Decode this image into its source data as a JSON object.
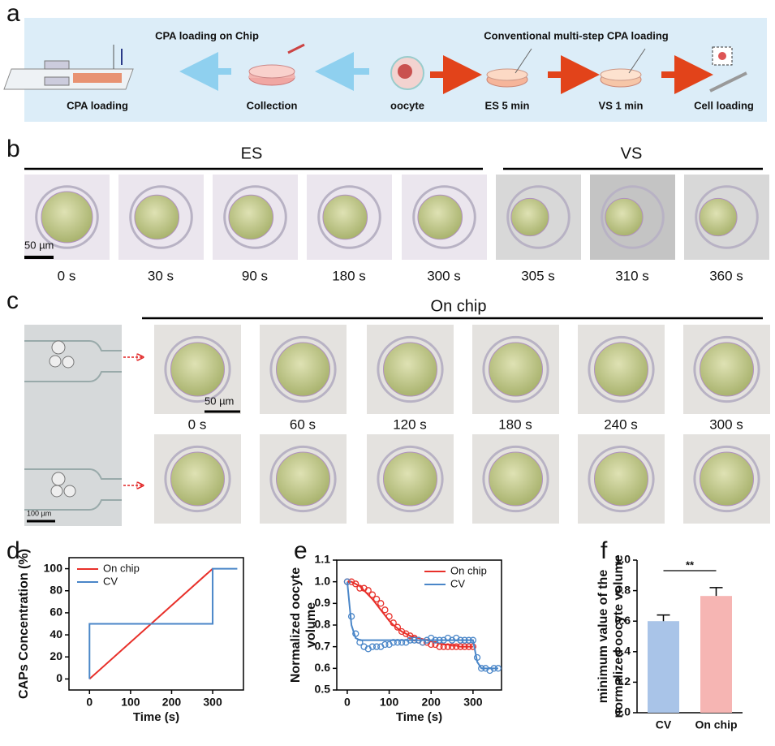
{
  "panel_labels": [
    "a",
    "b",
    "c",
    "d",
    "e",
    "f"
  ],
  "panel_a": {
    "left_title": "CPA loading on Chip",
    "right_title": "Conventional multi-step CPA loading",
    "steps": [
      "CPA loading",
      "Collection",
      "oocyte",
      "ES  5 min",
      "VS  1 min",
      "Cell loading"
    ]
  },
  "panel_b": {
    "groups": [
      "ES",
      "VS"
    ],
    "scale_bar": "50 µm",
    "times": [
      "0 s",
      "30 s",
      "90 s",
      "180 s",
      "300 s",
      "305 s",
      "310 s",
      "360 s"
    ]
  },
  "panel_c": {
    "header": "On chip",
    "scale_bar": "50 µm",
    "channel_scale_bar": "100 µm",
    "times": [
      "0 s",
      "60 s",
      "120 s",
      "180 s",
      "240 s",
      "300 s"
    ]
  },
  "chart_data": [
    {
      "type": "line",
      "xlabel": "Time (s)",
      "ylabel": "CAPs Concentration (%)",
      "xlim": [
        -50,
        375
      ],
      "ylim": [
        -10,
        110
      ],
      "xticks": [
        0,
        100,
        200,
        300
      ],
      "yticks": [
        0,
        20,
        40,
        60,
        80,
        100
      ],
      "legend": "upper left",
      "series": [
        {
          "name": "On chip",
          "color": "#e8302a",
          "x": [
            0,
            300
          ],
          "values": [
            0,
            100
          ]
        },
        {
          "name": "CV",
          "color": "#4a86c8",
          "x": [
            0,
            0,
            300,
            300,
            360
          ],
          "values": [
            0,
            50,
            50,
            100,
            100
          ]
        }
      ]
    },
    {
      "type": "scatter",
      "xlabel": "Time (s)",
      "ylabel": [
        "Normalized oocyte",
        "volume"
      ],
      "xlim": [
        -25,
        368
      ],
      "ylim": [
        0.5,
        1.1
      ],
      "xticks": [
        0,
        100,
        200,
        300
      ],
      "yticks": [
        0.5,
        0.6,
        0.7,
        0.8,
        0.9,
        {
          "value": 1,
          "label": "1.0"
        },
        1.1
      ],
      "legend": "upper right",
      "series": [
        {
          "name": "On chip",
          "color": "#e8302a",
          "x": [
            0,
            10,
            20,
            30,
            40,
            50,
            60,
            70,
            80,
            90,
            100,
            110,
            120,
            130,
            140,
            150,
            160,
            170,
            180,
            190,
            200,
            210,
            220,
            230,
            240,
            250,
            260,
            270,
            280,
            290,
            300
          ],
          "values": [
            1.0,
            1.0,
            0.99,
            0.97,
            0.97,
            0.96,
            0.94,
            0.92,
            0.9,
            0.87,
            0.84,
            0.81,
            0.79,
            0.77,
            0.76,
            0.75,
            0.74,
            0.73,
            0.72,
            0.72,
            0.71,
            0.71,
            0.7,
            0.7,
            0.7,
            0.7,
            0.7,
            0.7,
            0.7,
            0.7,
            0.7
          ],
          "fit": [
            1.0,
            1.0,
            0.99,
            0.98,
            0.96,
            0.94,
            0.92,
            0.895,
            0.87,
            0.845,
            0.82,
            0.8,
            0.785,
            0.77,
            0.76,
            0.75,
            0.745,
            0.74,
            0.735,
            0.73,
            0.725,
            0.72,
            0.715,
            0.71,
            0.71,
            0.705,
            0.705,
            0.7,
            0.7,
            0.7,
            0.7
          ]
        },
        {
          "name": "CV",
          "color": "#4a86c8",
          "x": [
            0,
            10,
            20,
            30,
            40,
            50,
            60,
            70,
            80,
            90,
            100,
            110,
            120,
            130,
            140,
            150,
            160,
            170,
            180,
            190,
            200,
            210,
            220,
            230,
            240,
            250,
            260,
            270,
            280,
            290,
            300,
            310,
            320,
            330,
            340,
            350,
            360
          ],
          "values": [
            1.0,
            0.84,
            0.76,
            0.72,
            0.7,
            0.69,
            0.7,
            0.7,
            0.7,
            0.71,
            0.71,
            0.72,
            0.72,
            0.72,
            0.72,
            0.73,
            0.73,
            0.73,
            0.72,
            0.73,
            0.74,
            0.73,
            0.73,
            0.73,
            0.74,
            0.73,
            0.74,
            0.73,
            0.73,
            0.73,
            0.73,
            0.65,
            0.6,
            0.6,
            0.59,
            0.6,
            0.6
          ],
          "fit": [
            1.0,
            0.8,
            0.74,
            0.73,
            0.73,
            0.73,
            0.73,
            0.73,
            0.73,
            0.73,
            0.73,
            0.73,
            0.73,
            0.73,
            0.73,
            0.73,
            0.73,
            0.73,
            0.73,
            0.73,
            0.73,
            0.73,
            0.73,
            0.73,
            0.73,
            0.73,
            0.73,
            0.73,
            0.73,
            0.73,
            0.73,
            0.63,
            0.6,
            0.6,
            0.6,
            0.6,
            0.6
          ]
        }
      ]
    },
    {
      "type": "bar",
      "ylabel": [
        "minimum value of the",
        "normalized oocyte volume"
      ],
      "categories": [
        "CV",
        "On chip"
      ],
      "values": [
        0.6,
        0.765
      ],
      "errors": [
        0.04,
        0.055
      ],
      "colors": [
        "#a9c4e8",
        "#f6b5b3"
      ],
      "ylim": [
        0,
        1.0
      ],
      "yticks": [
        {
          "value": 0,
          "label": "0.0"
        },
        0.2,
        0.4,
        0.6,
        0.8,
        {
          "value": 1,
          "label": "1.0"
        }
      ],
      "annotation": "**"
    }
  ]
}
